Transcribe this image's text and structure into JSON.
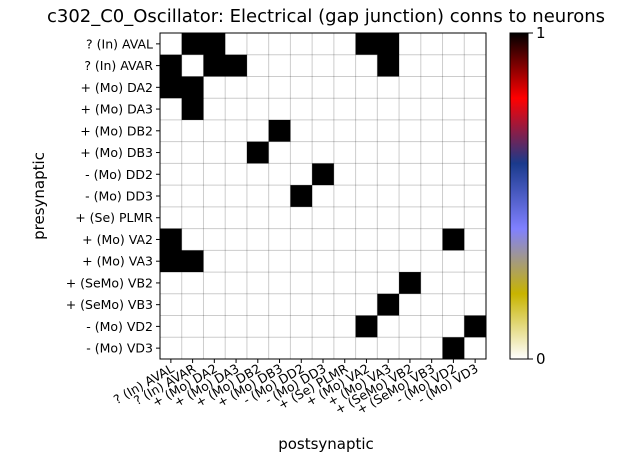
{
  "chart_data": {
    "type": "heatmap",
    "title": "c302_C0_Oscillator: Electrical (gap junction) conns to neurons",
    "xlabel": "postsynaptic",
    "ylabel": "presynaptic",
    "y_labels": [
      "? (In) AVAL",
      "? (In) AVAR",
      "+ (Mo) DA2",
      "+ (Mo) DA3",
      "+ (Mo) DB2",
      "+ (Mo) DB3",
      "- (Mo) DD2",
      "- (Mo) DD3",
      "+ (Se) PLMR",
      "+ (Mo) VA2",
      "+ (Mo) VA3",
      "+ (SeMo) VB2",
      "+ (SeMo) VB3",
      "- (Mo) VD2",
      "- (Mo) VD3"
    ],
    "x_labels": [
      "? (In) AVAL",
      "? (In) AVAR",
      "+ (Mo) DA2",
      "+ (Mo) DA3",
      "+ (Mo) DB2",
      "+ (Mo) DB3",
      "- (Mo) DD2",
      "- (Mo) DD3",
      "+ (Se) PLMR",
      "+ (Mo) VA2",
      "+ (Mo) VA3",
      "+ (SeMo) VB2",
      "+ (SeMo) VB3",
      "- (Mo) VD2",
      "- (Mo) VD3"
    ],
    "values": [
      [
        0,
        1,
        1,
        0,
        0,
        0,
        0,
        0,
        0,
        1,
        1,
        0,
        0,
        0,
        0
      ],
      [
        1,
        0,
        1,
        1,
        0,
        0,
        0,
        0,
        0,
        0,
        1,
        0,
        0,
        0,
        0
      ],
      [
        1,
        1,
        0,
        0,
        0,
        0,
        0,
        0,
        0,
        0,
        0,
        0,
        0,
        0,
        0
      ],
      [
        0,
        1,
        0,
        0,
        0,
        0,
        0,
        0,
        0,
        0,
        0,
        0,
        0,
        0,
        0
      ],
      [
        0,
        0,
        0,
        0,
        0,
        1,
        0,
        0,
        0,
        0,
        0,
        0,
        0,
        0,
        0
      ],
      [
        0,
        0,
        0,
        0,
        1,
        0,
        0,
        0,
        0,
        0,
        0,
        0,
        0,
        0,
        0
      ],
      [
        0,
        0,
        0,
        0,
        0,
        0,
        0,
        1,
        0,
        0,
        0,
        0,
        0,
        0,
        0
      ],
      [
        0,
        0,
        0,
        0,
        0,
        0,
        1,
        0,
        0,
        0,
        0,
        0,
        0,
        0,
        0
      ],
      [
        0,
        0,
        0,
        0,
        0,
        0,
        0,
        0,
        0,
        0,
        0,
        0,
        0,
        0,
        0
      ],
      [
        1,
        0,
        0,
        0,
        0,
        0,
        0,
        0,
        0,
        0,
        0,
        0,
        0,
        1,
        0
      ],
      [
        1,
        1,
        0,
        0,
        0,
        0,
        0,
        0,
        0,
        0,
        0,
        0,
        0,
        0,
        0
      ],
      [
        0,
        0,
        0,
        0,
        0,
        0,
        0,
        0,
        0,
        0,
        0,
        1,
        0,
        0,
        0
      ],
      [
        0,
        0,
        0,
        0,
        0,
        0,
        0,
        0,
        0,
        0,
        1,
        0,
        0,
        0,
        0
      ],
      [
        0,
        0,
        0,
        0,
        0,
        0,
        0,
        0,
        0,
        1,
        0,
        0,
        0,
        0,
        1
      ],
      [
        0,
        0,
        0,
        0,
        0,
        0,
        0,
        0,
        0,
        0,
        0,
        0,
        0,
        1,
        0
      ]
    ],
    "colorbar": {
      "min": 0,
      "max": 1,
      "tick_labels": [
        "0",
        "1"
      ]
    },
    "colormap": [
      "#ffffff",
      "#c8b400",
      "#8080ff",
      "#1a3a8c",
      "#ff0000",
      "#000000"
    ],
    "cell_color_on": "#000000",
    "cell_color_off": "#ffffff",
    "grid": true
  }
}
